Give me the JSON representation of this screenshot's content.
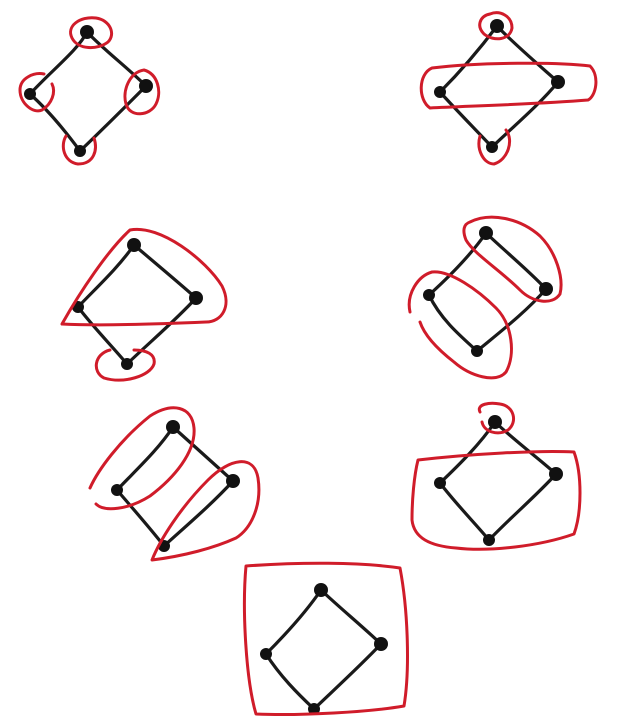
{
  "diagram": {
    "title": "",
    "graph": {
      "nodes": [
        "top",
        "left",
        "right",
        "bottom"
      ],
      "edges": [
        [
          "top",
          "left"
        ],
        [
          "top",
          "right"
        ],
        [
          "left",
          "bottom"
        ],
        [
          "right",
          "bottom"
        ]
      ],
      "node_color": "#111111",
      "edge_color": "#1a1a1a"
    },
    "partition_color": "#d01c2a",
    "panels": [
      {
        "id": "p1",
        "blocks": [
          [
            "top"
          ],
          [
            "left"
          ],
          [
            "right"
          ],
          [
            "bottom"
          ]
        ]
      },
      {
        "id": "p2",
        "blocks": [
          [
            "top"
          ],
          [
            "left",
            "right"
          ],
          [
            "bottom"
          ]
        ]
      },
      {
        "id": "p3",
        "blocks": [
          [
            "top",
            "left",
            "right"
          ],
          [
            "bottom"
          ]
        ]
      },
      {
        "id": "p4",
        "blocks": [
          [
            "top",
            "right"
          ],
          [
            "left",
            "bottom"
          ]
        ]
      },
      {
        "id": "p5",
        "blocks": [
          [
            "top",
            "left"
          ],
          [
            "right",
            "bottom"
          ]
        ]
      },
      {
        "id": "p6",
        "blocks": [
          [
            "top"
          ],
          [
            "left",
            "right",
            "bottom"
          ]
        ]
      },
      {
        "id": "p7",
        "blocks": [
          [
            "top",
            "left",
            "right",
            "bottom"
          ]
        ]
      }
    ]
  }
}
